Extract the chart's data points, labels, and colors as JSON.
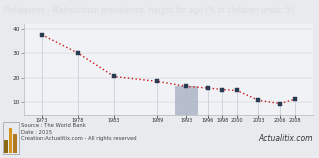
{
  "title": "Philippines - Malnutrition prevalence, height for age (% of children under 5)",
  "years": [
    1973,
    1978,
    1983,
    1989,
    1993,
    1996,
    1998,
    2000,
    2003,
    2006,
    2008
  ],
  "values": [
    37.5,
    30.0,
    20.5,
    18.5,
    16.5,
    15.8,
    15.2,
    14.8,
    10.8,
    9.5,
    11.2
  ],
  "highlight_year": 1993,
  "highlight_bar_color": "#b0b8c8",
  "line_color": "#cc1111",
  "marker_color": "#2a3a52",
  "bg_color": "#f0f2f5",
  "title_bg": "#1c1c1c",
  "title_color": "#dddddd",
  "footer_text": "Source : The World Bank\nDate : 2015\nCreation:Actualitix.com - All rights reserved",
  "ylim": [
    5,
    42
  ],
  "ytick_vals": [
    10,
    20,
    30,
    40
  ],
  "title_fontsize": 5.5,
  "footer_fontsize": 3.8,
  "xtick_fontsize": 3.5,
  "ytick_fontsize": 4.2
}
